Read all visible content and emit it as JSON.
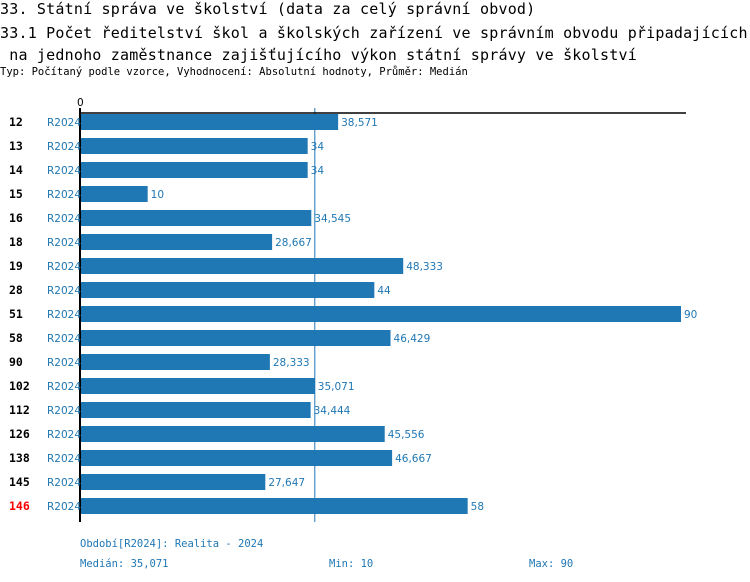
{
  "header": {
    "title": "33. Státní správa ve školství (data za celý správní obvod)",
    "chart_title_line1": "33.1 Počet ředitelství škol a školských zařízení ve správním obvodu připadajících",
    "chart_title_line2": " na jednoho zaměstnance zajišťujícího výkon státní správy ve školství",
    "subtitle": "Typ: Počítaný podle vzorce, Vyhodnocení: Absolutní hodnoty, Průměr: Medián"
  },
  "chart_data": {
    "type": "bar",
    "orientation": "horizontal",
    "title": "33.1 Počet ředitelství škol a školských zařízení ve správním obvodu připadajících na jednoho zaměstnance zajišťujícího výkon státní správy ve školství",
    "categories": [
      "12",
      "13",
      "14",
      "15",
      "16",
      "18",
      "19",
      "28",
      "51",
      "58",
      "90",
      "102",
      "112",
      "126",
      "138",
      "145",
      "146"
    ],
    "highlighted_category": "146",
    "period_label": "R2024",
    "values": [
      38.571,
      34,
      34,
      10,
      34.545,
      28.667,
      48.333,
      44,
      90,
      46.429,
      28.333,
      35.071,
      34.444,
      45.556,
      46.667,
      27.647,
      58
    ],
    "value_labels": [
      "38,571",
      "34",
      "34",
      "10",
      "34,545",
      "28,667",
      "48,333",
      "44",
      "90",
      "46,429",
      "28,333",
      "35,071",
      "34,444",
      "45,556",
      "46,667",
      "27,647",
      "58"
    ],
    "x_axis_tick": "0",
    "xlim": [
      0,
      90
    ],
    "median": 35.071,
    "grid": false,
    "bar_color": "#1f77b4",
    "highlight_color": "#ff0000"
  },
  "footer": {
    "period": "Období[R2024]: Realita - 2024",
    "median": "Medián: 35,071",
    "min": "Min: 10",
    "max": "Max: 90"
  }
}
